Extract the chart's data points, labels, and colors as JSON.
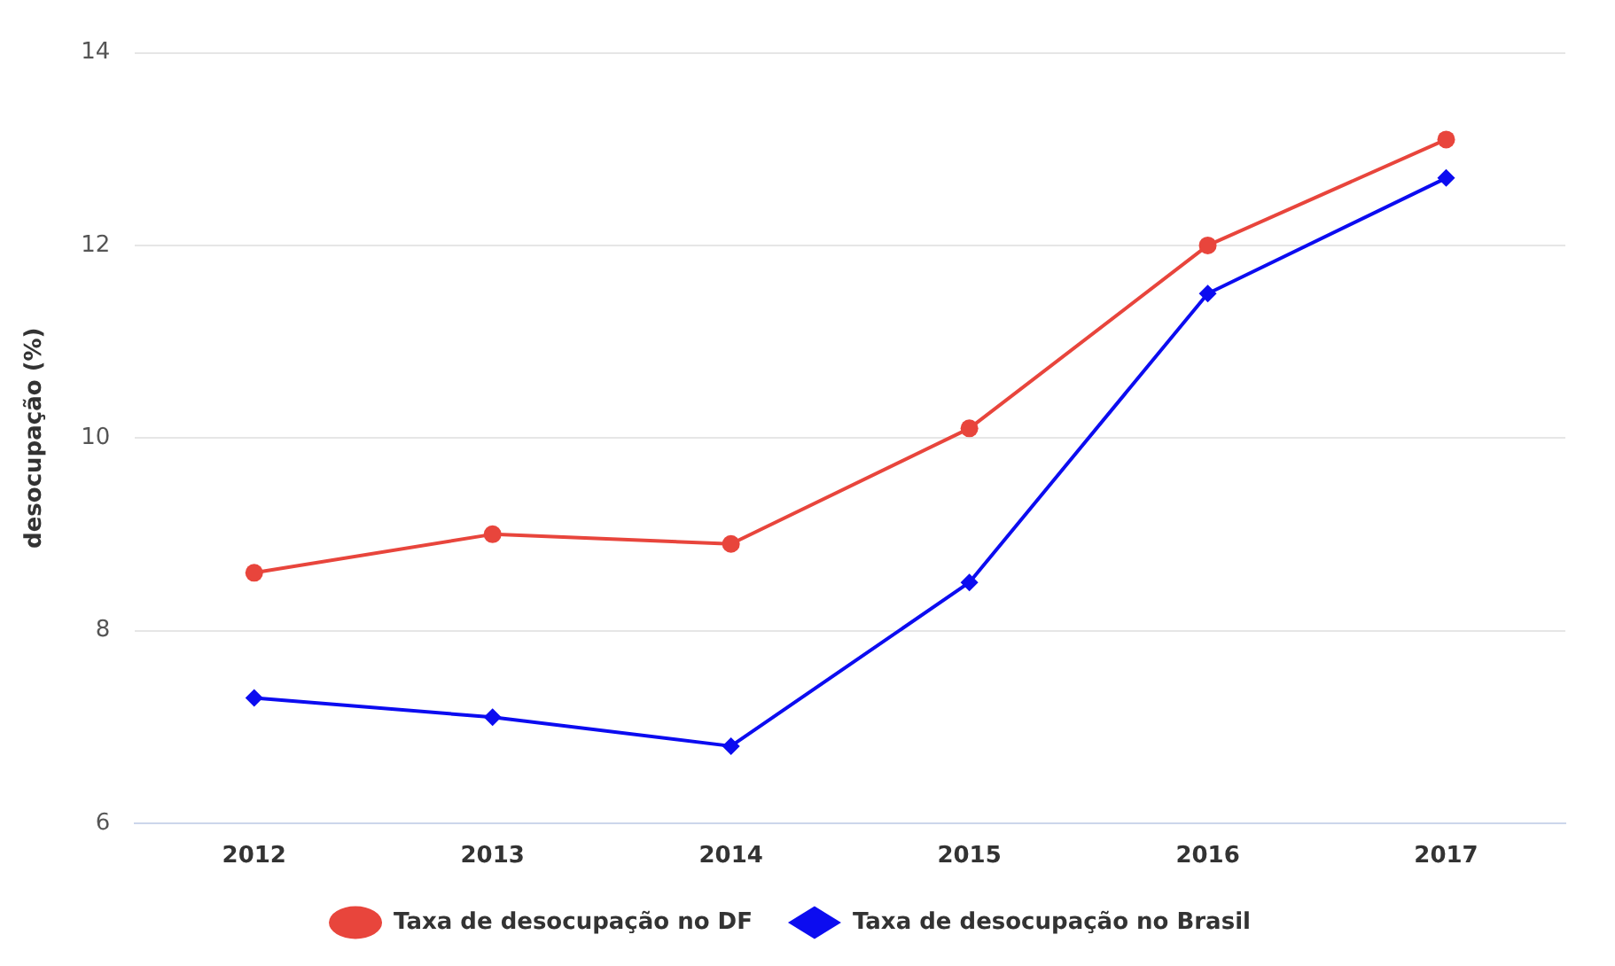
{
  "chart_data": {
    "type": "line",
    "ylabel": "desocupação (%)",
    "categories": [
      "2012",
      "2013",
      "2014",
      "2015",
      "2016",
      "2017"
    ],
    "series": [
      {
        "name": "Taxa de desocupação no DF",
        "color": "#e8453c",
        "marker": "circle",
        "values": [
          8.6,
          9.0,
          8.9,
          10.1,
          12.0,
          13.1
        ]
      },
      {
        "name": "Taxa de desocupação no Brasil",
        "color": "#0c0cf0",
        "marker": "diamond",
        "values": [
          7.3,
          7.1,
          6.8,
          8.5,
          11.5,
          12.7
        ]
      }
    ],
    "ylim": [
      6,
      14
    ],
    "yticks": [
      6,
      8,
      10,
      12,
      14
    ],
    "grid": "y",
    "legend": "bottom",
    "line_style": "solid"
  }
}
